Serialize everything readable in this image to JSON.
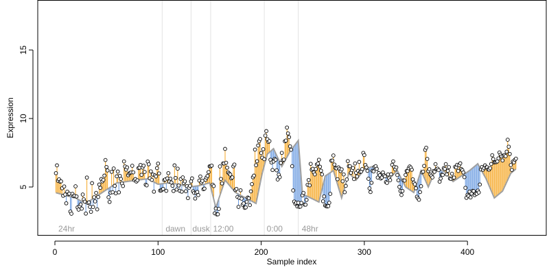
{
  "chart_data": {
    "type": "scatter",
    "title": "",
    "xlabel": "Sample index",
    "ylabel": "Expression",
    "xlim": [
      0,
      463
    ],
    "ylim": [
      1.75,
      18.5
    ],
    "x_ticks": [
      0,
      100,
      200,
      300,
      400
    ],
    "y_ticks": [
      5,
      10,
      15
    ],
    "grid": false,
    "legend": "none",
    "colors": {
      "above_segment": "#f5a623",
      "below_segment": "#6a9be0",
      "trend_line": "#a0a0a0",
      "point_edge": "#000000",
      "point_fill": "#ffffff",
      "separator": "#e2e2e2",
      "annotation_text": "#9a9a9a"
    },
    "separators": [
      104,
      132,
      151,
      203,
      236
    ],
    "annotations": [
      {
        "text": "24hr",
        "x": 2
      },
      {
        "text": "dawn",
        "x": 106
      },
      {
        "text": "dusk",
        "x": 132
      },
      {
        "text": "12:00",
        "x": 152
      },
      {
        "text": "0:00",
        "x": 204
      },
      {
        "text": "48hr",
        "x": 238
      }
    ],
    "trend_knots": [
      [
        0,
        4.6
      ],
      [
        10,
        4.4
      ],
      [
        20,
        4.2
      ],
      [
        30,
        3.8
      ],
      [
        40,
        4.3
      ],
      [
        50,
        4.8
      ],
      [
        60,
        5.3
      ],
      [
        70,
        5.4
      ],
      [
        80,
        5.5
      ],
      [
        90,
        5.6
      ],
      [
        100,
        5.2
      ],
      [
        110,
        5.3
      ],
      [
        120,
        5.2
      ],
      [
        130,
        5.0
      ],
      [
        140,
        5.1
      ],
      [
        150,
        5.3
      ],
      [
        156,
        3.5
      ],
      [
        165,
        5.5
      ],
      [
        175,
        4.6
      ],
      [
        185,
        4.2
      ],
      [
        195,
        3.8
      ],
      [
        201,
        6.0
      ],
      [
        206,
        7.4
      ],
      [
        212,
        7.8
      ],
      [
        220,
        6.5
      ],
      [
        228,
        7.6
      ],
      [
        236,
        8.4
      ],
      [
        240,
        4.5
      ],
      [
        248,
        4.2
      ],
      [
        256,
        3.9
      ],
      [
        262,
        5.8
      ],
      [
        270,
        6.2
      ],
      [
        278,
        4.2
      ],
      [
        285,
        6.0
      ],
      [
        292,
        5.5
      ],
      [
        300,
        6.3
      ],
      [
        308,
        6.5
      ],
      [
        316,
        6.0
      ],
      [
        324,
        5.6
      ],
      [
        332,
        6.2
      ],
      [
        340,
        5.0
      ],
      [
        348,
        4.6
      ],
      [
        355,
        6.2
      ],
      [
        362,
        5.0
      ],
      [
        370,
        6.4
      ],
      [
        378,
        6.1
      ],
      [
        386,
        5.4
      ],
      [
        394,
        5.8
      ],
      [
        402,
        6.2
      ],
      [
        410,
        6.7
      ],
      [
        418,
        5.6
      ],
      [
        426,
        4.2
      ],
      [
        434,
        4.7
      ],
      [
        442,
        6.0
      ],
      [
        450,
        6.5
      ],
      [
        463,
        6.2
      ]
    ],
    "y_values": [
      6.01,
      6.58,
      5.45,
      5.56,
      5.39,
      5.41,
      4.91,
      4.36,
      5.04,
      4.45,
      3.81,
      4.66,
      4.47,
      4.51,
      3.21,
      3.05,
      4.5,
      4.33,
      4.36,
      5.05,
      4.31,
      3.51,
      3.35,
      3.59,
      3.73,
      3.42,
      4.45,
      4.1,
      3.93,
      3.06,
      5.69,
      3.84,
      3.88,
      3.55,
      3.19,
      5.28,
      3.54,
      4.25,
      3.95,
      4.57,
      3.37,
      4.27,
      5.18,
      4.94,
      5.58,
      5.41,
      5.52,
      5.83,
      6.97,
      6.46,
      6.21,
      4.25,
      3.91,
      4.59,
      6.11,
      4.62,
      6.35,
      5.08,
      4.54,
      5.78,
      6.13,
      4.61,
      5.81,
      5.59,
      5.26,
      5.07,
      6.87,
      6.5,
      6.27,
      6.43,
      5.86,
      5.98,
      6.04,
      6.07,
      6.55,
      6.07,
      5.5,
      5.58,
      5.4,
      5.49,
      6.38,
      6.41,
      6.61,
      5.89,
      6.42,
      6.56,
      6.1,
      5.17,
      5.12,
      6.86,
      6.66,
      5.64,
      6.14,
      5.52,
      5.91,
      4.66,
      5.85,
      5.77,
      6.38,
      6.71,
      5.99,
      4.74,
      4.75,
      4.81,
      4.86,
      5.51,
      5.55,
      4.72,
      5.63,
      6.01,
      5.4,
      5.61,
      5.33,
      5.09,
      4.71,
      6.58,
      5.66,
      4.82,
      6.34,
      5.11,
      4.72,
      5.58,
      4.66,
      5.7,
      5.29,
      5.41,
      4.69,
      5.06,
      4.19,
      4.95,
      5.09,
      5.41,
      5.63,
      4.69,
      4.57,
      4.16,
      4.57,
      4.64,
      4.41,
      5.47,
      5.77,
      5.33,
      5.45,
      4.84,
      4.88,
      5.53,
      5.69,
      5.81,
      6.09,
      6.51,
      6.51,
      6.56,
      5.17,
      5.07,
      3.08,
      3.43,
      3.0,
      3.01,
      3.4,
      6.5,
      5.59,
      5.26,
      6.72,
      6.72,
      7.78,
      6.77,
      6.41,
      6.06,
      5.98,
      5.91,
      5.63,
      5.7,
      6.51,
      6.64,
      4.78,
      4.86,
      4.27,
      3.55,
      4.2,
      4.76,
      4.15,
      3.7,
      3.8,
      3.48,
      3.51,
      3.92,
      4.23,
      4.18,
      3.68,
      4.68,
      5.21,
      5.71,
      5.83,
      7.73,
      6.59,
      6.88,
      8.03,
      8.35,
      8.5,
      7.48,
      7.14,
      7.76,
      7.03,
      8.75,
      9.08,
      8.49,
      8.29,
      8.35,
      6.99,
      6.79,
      6.24,
      6.86,
      7.05,
      6.99,
      6.22,
      5.55,
      5.9,
      5.72,
      6.76,
      7.49,
      6.96,
      7.0,
      8.34,
      8.39,
      9.34,
      8.91,
      8.64,
      7.97,
      7.72,
      6.52,
      4.75,
      3.94,
      3.78,
      3.85,
      3.58,
      3.85,
      3.55,
      3.57,
      3.84,
      4.39,
      4.57,
      3.72,
      3.71,
      4.06,
      5.16,
      5.51,
      5.12,
      6.69,
      6.26,
      6.33,
      6.06,
      5.92,
      6.31,
      6.64,
      6.71,
      6.99,
      6.48,
      6.19,
      5.92,
      3.96,
      4.31,
      3.65,
      3.6,
      3.58,
      3.6,
      3.85,
      4.5,
      6.92,
      6.93,
      7.3,
      6.64,
      6.39,
      6.36,
      5.57,
      6.43,
      6.32,
      6.16,
      6.29,
      5.42,
      5.92,
      4.62,
      5.08,
      5.55,
      6.89,
      6.52,
      6.52,
      6.04,
      6.23,
      6.39,
      5.58,
      6.72,
      6.04,
      5.77,
      6.18,
      6.83,
      6.1,
      6.13,
      6.31,
      7.49,
      7.33,
      6.61,
      6.43,
      6.18,
      5.6,
      4.9,
      4.63,
      5.31,
      6.18,
      6.14,
      6.47,
      6.52,
      6.33,
      5.69,
      6.01,
      5.86,
      5.62,
      5.69,
      6.06,
      5.86,
      5.78,
      5.36,
      5.3,
      5.92,
      5.64,
      5.5,
      5.93,
      6.62,
      6.87,
      6.47,
      6.29,
      6.43,
      5.87,
      5.49,
      5.01,
      4.71,
      4.42,
      4.71,
      5.49,
      5.47,
      5.88,
      6.17,
      6.16,
      6.37,
      6.5,
      6.42,
      6.26,
      5.56,
      5.32,
      5.2,
      4.91,
      4.29,
      4.17,
      4.07,
      4.63,
      5.06,
      6.07,
      6.12,
      6.54,
      7.71,
      7.87,
      7.05,
      6.16,
      6.3,
      5.91,
      5.82,
      5.7,
      6.16,
      6.11,
      6.67,
      6.31,
      6.34,
      6.23,
      5.39,
      5.62,
      5.91,
      5.88,
      6.38,
      6.32,
      6.67,
      5.92,
      6.18,
      6.45,
      5.62,
      5.59,
      5.97,
      5.65,
      5.69,
      6.47,
      6.43,
      6.62,
      6.17,
      6.6,
      6.73,
      6.31,
      6.23,
      6.06,
      5.72,
      4.94,
      4.21,
      4.43,
      4.34,
      4.66,
      4.24,
      4.52,
      4.72,
      4.7,
      4.41,
      4.53,
      4.5,
      4.74,
      4.6,
      5.18,
      6.28,
      6.46,
      6.26,
      6.38,
      6.58,
      6.43,
      6.44,
      6.28,
      6.27,
      6.37,
      6.68,
      7.32,
      7.04,
      6.8,
      6.81,
      6.82,
      6.87,
      7.09,
      7.52,
      7.36,
      7.24,
      6.94,
      7.29,
      7.33,
      7.25,
      7.58,
      8.45,
      7.94,
      7.41,
      6.6,
      6.25,
      6.86,
      6.8,
      6.99,
      7.07
    ]
  }
}
